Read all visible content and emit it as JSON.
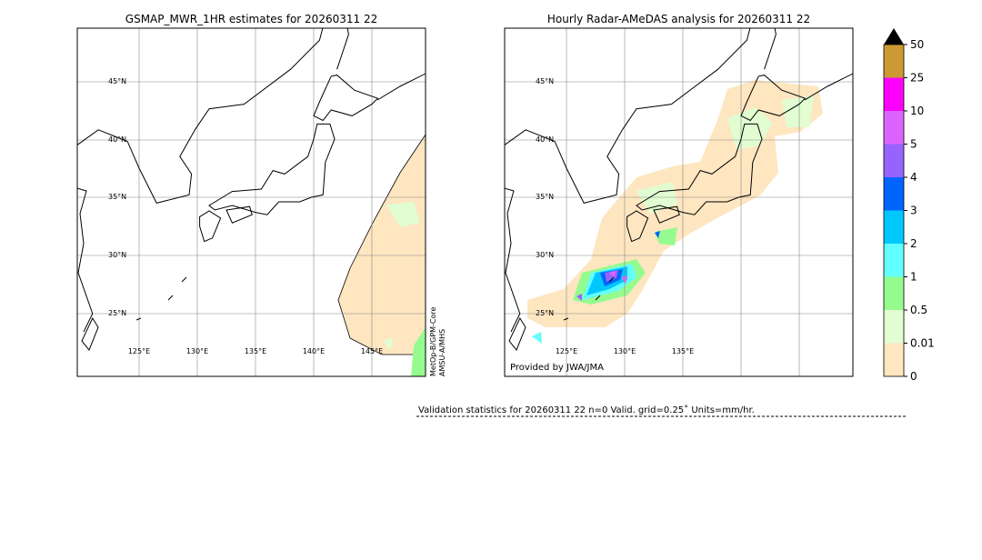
{
  "left_panel": {
    "title": "GSMAP_MWR_1HR estimates for 20260311 22",
    "lat_labels": [
      "45°N",
      "40°N",
      "35°N",
      "30°N",
      "25°N"
    ],
    "lon_labels": [
      "125°E",
      "130°E",
      "135°E",
      "140°E",
      "145°E"
    ],
    "sensor_labels": [
      "MetOp-B/GPM-Core",
      "AMSU-A/MHS"
    ]
  },
  "right_panel": {
    "title": "Hourly Radar-AMeDAS analysis for 20260311 22",
    "lat_labels": [
      "45°N",
      "40°N",
      "35°N",
      "30°N",
      "25°N"
    ],
    "lon_labels": [
      "125°E",
      "130°E",
      "135°E"
    ],
    "credit": "Provided by JWA/JMA"
  },
  "colorbar": {
    "labels": [
      "0",
      "0.01",
      "0.5",
      "1",
      "2",
      "3",
      "4",
      "5",
      "10",
      "25",
      "50"
    ],
    "colors": [
      "#fde6c0",
      "#e2fdd2",
      "#96fb8e",
      "#62fdfd",
      "#00c8fd",
      "#0064fd",
      "#9664fd",
      "#dc64fd",
      "#fd00fd",
      "#cc9933"
    ],
    "extend_color": "#000000"
  },
  "footer": {
    "validation": "Validation statistics for 20260311 22  n=0 Valid. grid=0.25˚ Units=mm/hr."
  }
}
